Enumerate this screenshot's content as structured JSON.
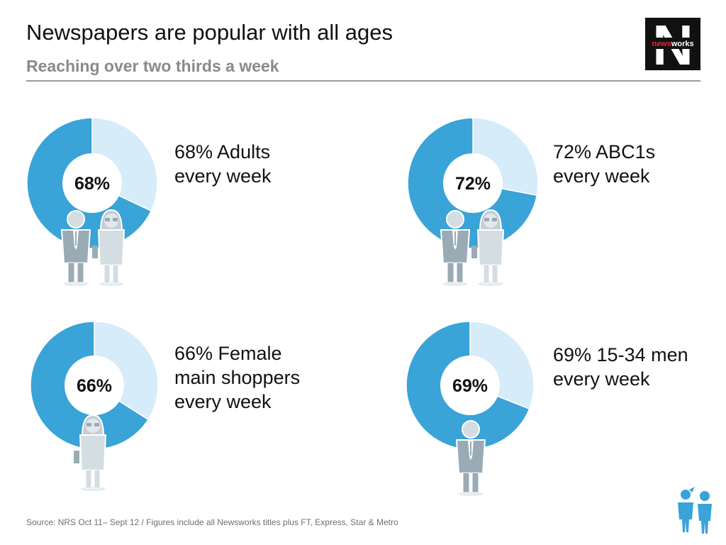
{
  "header": {
    "title": "Newspapers are popular with all ages",
    "subtitle": "Reaching over two thirds a week",
    "logo_text_a": "news",
    "logo_text_b": "works",
    "logo_letter": "N"
  },
  "source": "Source: NRS Oct 11– Sept 12 / Figures include all Newsworks titles plus FT, Express, Star & Metro",
  "colors": {
    "reached": "#3aa3d8",
    "not_reached": "#d6ecf8",
    "figure_dark": "#9aabb5",
    "figure_light": "#d3dde2",
    "logo_bg": "#111111",
    "logo_red": "#e8222e",
    "accent_blue": "#3aa3d8"
  },
  "chart_data": [
    {
      "type": "pie",
      "variant": "donut",
      "center_label": "68%",
      "slices": [
        {
          "label": "Reached",
          "value": 68
        },
        {
          "label": "Not reached",
          "value": 32
        }
      ],
      "caption": [
        "68% Adults",
        "every week"
      ],
      "figures": [
        "man",
        "woman"
      ]
    },
    {
      "type": "pie",
      "variant": "donut",
      "center_label": "72%",
      "slices": [
        {
          "label": "Reached",
          "value": 72
        },
        {
          "label": "Not reached",
          "value": 28
        }
      ],
      "caption": [
        "72% ABC1s",
        "every week"
      ],
      "figures": [
        "man",
        "woman"
      ]
    },
    {
      "type": "pie",
      "variant": "donut",
      "center_label": "66%",
      "slices": [
        {
          "label": "Reached",
          "value": 66
        },
        {
          "label": "Not reached",
          "value": 34
        }
      ],
      "caption": [
        "66% Female",
        "main shoppers",
        "every week"
      ],
      "figures": [
        "woman"
      ]
    },
    {
      "type": "pie",
      "variant": "donut",
      "center_label": "69%",
      "slices": [
        {
          "label": "Reached",
          "value": 69
        },
        {
          "label": "Not reached",
          "value": 31
        }
      ],
      "caption": [
        "69% 15-34 men",
        "every week"
      ],
      "figures": [
        "man"
      ]
    }
  ]
}
